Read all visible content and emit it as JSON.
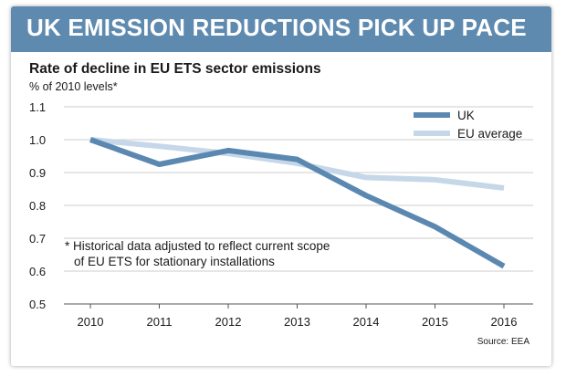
{
  "banner_title": "UK EMISSION REDUCTIONS PICK UP PACE",
  "chart_data": {
    "type": "line",
    "title": "Rate of decline in EU ETS sector emissions",
    "ylabel": "% of 2010 levels*",
    "xlabel": "",
    "categories": [
      "2010",
      "2011",
      "2012",
      "2013",
      "2014",
      "2015",
      "2016"
    ],
    "y_ticks": [
      "0.5",
      "0.6",
      "0.7",
      "0.8",
      "0.9",
      "1.0",
      "1.1"
    ],
    "ylim": [
      0.5,
      1.1
    ],
    "grid": true,
    "legend_position": "top-right",
    "series": [
      {
        "name": "UK",
        "color": "#5b88b0",
        "values": [
          1.0,
          0.925,
          0.967,
          0.94,
          0.83,
          0.735,
          0.615
        ]
      },
      {
        "name": "EU average",
        "color": "#c5d7e8",
        "values": [
          1.0,
          0.98,
          0.958,
          0.928,
          0.885,
          0.878,
          0.853
        ]
      }
    ],
    "annotation_lines": [
      "* Historical data adjusted to reflect current scope",
      "of EU ETS for stationary installations"
    ],
    "source": "Source: EEA"
  }
}
